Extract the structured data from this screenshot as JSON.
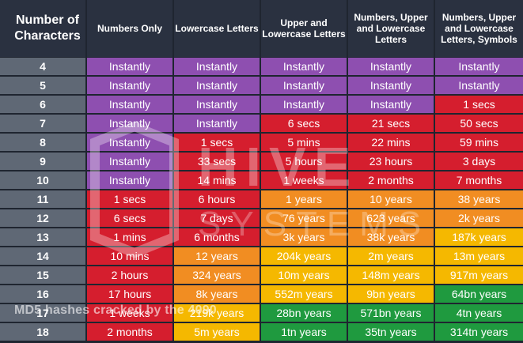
{
  "chart_data": {
    "type": "table",
    "title": "",
    "header": [
      "Number of Characters",
      "Numbers Only",
      "Lowercase Letters",
      "Upper and Lowercase Letters",
      "Numbers, Upper and Lowercase Letters",
      "Numbers, Upper and Lowercase Letters, Symbols"
    ],
    "rows": [
      {
        "n": "4",
        "cells": [
          "Instantly",
          "Instantly",
          "Instantly",
          "Instantly",
          "Instantly"
        ]
      },
      {
        "n": "5",
        "cells": [
          "Instantly",
          "Instantly",
          "Instantly",
          "Instantly",
          "Instantly"
        ]
      },
      {
        "n": "6",
        "cells": [
          "Instantly",
          "Instantly",
          "Instantly",
          "Instantly",
          "1 secs"
        ]
      },
      {
        "n": "7",
        "cells": [
          "Instantly",
          "Instantly",
          "6 secs",
          "21 secs",
          "50 secs"
        ]
      },
      {
        "n": "8",
        "cells": [
          "Instantly",
          "1 secs",
          "5 mins",
          "22 mins",
          "59 mins"
        ]
      },
      {
        "n": "9",
        "cells": [
          "Instantly",
          "33 secs",
          "5 hours",
          "23 hours",
          "3 days"
        ]
      },
      {
        "n": "10",
        "cells": [
          "Instantly",
          "14 mins",
          "1 weeks",
          "2 months",
          "7 months"
        ]
      },
      {
        "n": "11",
        "cells": [
          "1 secs",
          "6 hours",
          "1 years",
          "10 years",
          "38 years"
        ]
      },
      {
        "n": "12",
        "cells": [
          "6 secs",
          "7 days",
          "76 years",
          "623 years",
          "2k years"
        ]
      },
      {
        "n": "13",
        "cells": [
          "1 mins",
          "6 months",
          "3k years",
          "38k years",
          "187k years"
        ]
      },
      {
        "n": "14",
        "cells": [
          "10 mins",
          "12 years",
          "204k years",
          "2m years",
          "13m years"
        ]
      },
      {
        "n": "15",
        "cells": [
          "2 hours",
          "324 years",
          "10m years",
          "148m years",
          "917m years"
        ]
      },
      {
        "n": "16",
        "cells": [
          "17 hours",
          "8k years",
          "552m years",
          "9bn years",
          "64bn years"
        ]
      },
      {
        "n": "17",
        "cells": [
          "1 weeks",
          "219k years",
          "28bn years",
          "571bn years",
          "4tn years"
        ]
      },
      {
        "n": "18",
        "cells": [
          "2 months",
          "5m years",
          "1tn years",
          "35tn years",
          "314tn years"
        ]
      }
    ],
    "levels": [
      [
        "p",
        "p",
        "p",
        "p",
        "p"
      ],
      [
        "p",
        "p",
        "p",
        "p",
        "p"
      ],
      [
        "p",
        "p",
        "p",
        "p",
        "r"
      ],
      [
        "p",
        "p",
        "r",
        "r",
        "r"
      ],
      [
        "p",
        "r",
        "r",
        "r",
        "r"
      ],
      [
        "p",
        "r",
        "r",
        "r",
        "r"
      ],
      [
        "p",
        "r",
        "r",
        "r",
        "r"
      ],
      [
        "r",
        "r",
        "o",
        "o",
        "o"
      ],
      [
        "r",
        "r",
        "o",
        "o",
        "o"
      ],
      [
        "r",
        "r",
        "o",
        "o",
        "y"
      ],
      [
        "r",
        "o",
        "y",
        "y",
        "y"
      ],
      [
        "r",
        "o",
        "y",
        "y",
        "y"
      ],
      [
        "r",
        "o",
        "y",
        "y",
        "g"
      ],
      [
        "r",
        "y",
        "g",
        "g",
        "g"
      ],
      [
        "r",
        "y",
        "g",
        "g",
        "g"
      ]
    ],
    "colors": {
      "p": "#8e4fb0",
      "r": "#d51e2e",
      "o": "#f18d22",
      "y": "#f5b800",
      "g": "#1f9a3f",
      "header": "#2a3140",
      "rowlab": "#5f6875"
    }
  },
  "watermark": {
    "brand": "HIVE",
    "sub": "SYSTEMS"
  },
  "caption": "MD5 hashes cracked by the 4090"
}
